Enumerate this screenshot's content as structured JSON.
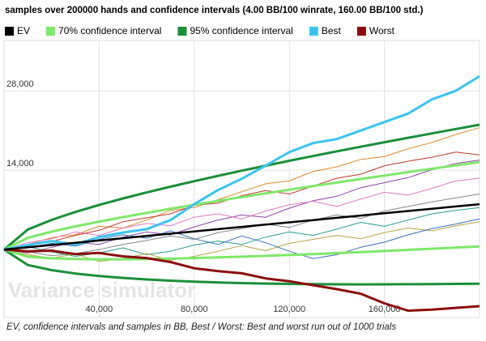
{
  "chart_data": {
    "type": "line",
    "title": "samples over 200000 hands and confidence intervals (4.00 BB/100 winrate, 160.00 BB/100 std.)",
    "caption": "EV, confidence intervals and samples in BB, Best / Worst: Best and worst run out of 1000 trials",
    "watermark": "Variance simulator",
    "x": [
      0,
      10000,
      20000,
      30000,
      40000,
      50000,
      60000,
      70000,
      80000,
      90000,
      100000,
      110000,
      120000,
      130000,
      140000,
      150000,
      160000,
      170000,
      180000,
      190000,
      200000
    ],
    "xlim": [
      0,
      200000
    ],
    "xticks": [
      {
        "value": 40000,
        "label": "40,000"
      },
      {
        "value": 80000,
        "label": "80,000"
      },
      {
        "value": 120000,
        "label": "120,000"
      },
      {
        "value": 160000,
        "label": "160,000"
      }
    ],
    "ylim": [
      -12000,
      36900
    ],
    "yticks": [
      {
        "value": 14000,
        "label": "14,000"
      },
      {
        "value": 28000,
        "label": "28,000"
      }
    ],
    "grid": true,
    "series": [
      {
        "name": "EV",
        "color": "#000000",
        "values": [
          0,
          400,
          800,
          1200,
          1600,
          2000,
          2400,
          2800,
          3200,
          3600,
          4000,
          4400,
          4800,
          5200,
          5600,
          6000,
          6400,
          6800,
          7200,
          7600,
          8000
        ]
      },
      {
        "name": "70% confidence interval",
        "color": "#7ee86a",
        "upper": [
          0,
          2064,
          3154,
          4082,
          4928,
          5721,
          6476,
          7202,
          7906,
          8592,
          9262,
          9919,
          10565,
          11200,
          11826,
          12445,
          13056,
          13661,
          14260,
          14853,
          15441
        ],
        "lower": [
          0,
          -1264,
          -1554,
          -1682,
          -1728,
          -1721,
          -1676,
          -1602,
          -1506,
          -1392,
          -1262,
          -1119,
          -965,
          -800,
          -626,
          -445,
          -256,
          -61,
          140,
          347,
          559
        ]
      },
      {
        "name": "95% confidence interval",
        "color": "#1a8f3a",
        "upper": [
          0,
          3536,
          5235,
          6631,
          7872,
          9013,
          10081,
          11097,
          12069,
          13008,
          13918,
          14802,
          15664,
          16507,
          17333,
          18146,
          18944,
          19730,
          20504,
          21269,
          22024
        ],
        "lower": [
          0,
          -2736,
          -3635,
          -4231,
          -4672,
          -5013,
          -5281,
          -5497,
          -5669,
          -5808,
          -5918,
          -6002,
          -6064,
          -6107,
          -6133,
          -6146,
          -6144,
          -6130,
          -6104,
          -6069,
          -6024
        ]
      },
      {
        "name": "Best",
        "color": "#3cc4ef",
        "values": [
          0,
          800,
          1500,
          900,
          2200,
          3000,
          3600,
          5200,
          8000,
          10500,
          12500,
          14800,
          17200,
          18800,
          19500,
          21000,
          22500,
          24000,
          26500,
          28000,
          30600
        ]
      },
      {
        "name": "Worst",
        "color": "#8b0e0e",
        "values": [
          0,
          -300,
          -200,
          -800,
          -600,
          -1200,
          -1500,
          -2200,
          -3300,
          -3800,
          -4200,
          -5100,
          -5600,
          -6300,
          -7000,
          -7800,
          -9500,
          -10800,
          -10600,
          -10300,
          -10000
        ]
      }
    ],
    "samples": [
      {
        "color": "#e08a2c",
        "values": [
          0,
          900,
          2100,
          2600,
          4100,
          3800,
          5200,
          6900,
          7400,
          8800,
          10200,
          11600,
          12100,
          13800,
          14600,
          15900,
          16400,
          17800,
          18900,
          20300,
          21500
        ]
      },
      {
        "color": "#8e44ad",
        "values": [
          0,
          -600,
          400,
          1300,
          900,
          2200,
          3100,
          2600,
          4000,
          5200,
          6100,
          5700,
          7300,
          8600,
          9400,
          10900,
          11800,
          12700,
          14100,
          15200,
          15800
        ]
      },
      {
        "color": "#2a9d8f",
        "values": [
          0,
          500,
          -400,
          -1200,
          -600,
          300,
          -900,
          -300,
          800,
          1500,
          900,
          2200,
          3100,
          2500,
          3600,
          4800,
          4100,
          5200,
          6300,
          6900,
          7400
        ]
      },
      {
        "color": "#e377c2",
        "values": [
          0,
          1200,
          1900,
          3100,
          2500,
          3800,
          4600,
          4200,
          5700,
          6300,
          5400,
          6800,
          7900,
          8500,
          7600,
          8900,
          10100,
          9600,
          10800,
          12100,
          12600
        ]
      },
      {
        "color": "#b5a642",
        "values": [
          0,
          -900,
          -1500,
          -800,
          -2100,
          -1600,
          -700,
          -1900,
          -1200,
          -300,
          700,
          -200,
          1100,
          1800,
          2500,
          1900,
          3000,
          3800,
          3300,
          4200,
          4900
        ]
      },
      {
        "color": "#3a6ebf",
        "values": [
          0,
          300,
          1100,
          600,
          1800,
          2600,
          2000,
          3300,
          1900,
          900,
          2400,
          1200,
          -300,
          -1600,
          -900,
          400,
          1300,
          2600,
          3700,
          4500,
          5400
        ]
      },
      {
        "color": "#c0392b",
        "values": [
          0,
          700,
          1400,
          2500,
          3400,
          4900,
          5600,
          6300,
          7800,
          8200,
          9500,
          10400,
          9800,
          11200,
          12600,
          13300,
          14800,
          15600,
          16300,
          17200,
          16700
        ]
      },
      {
        "color": "#7f8c8d",
        "values": [
          0,
          -400,
          -1100,
          -700,
          0,
          900,
          1600,
          2400,
          1800,
          3000,
          3700,
          4500,
          3900,
          5200,
          6100,
          5500,
          6800,
          7600,
          8400,
          9100,
          9800
        ]
      }
    ]
  }
}
